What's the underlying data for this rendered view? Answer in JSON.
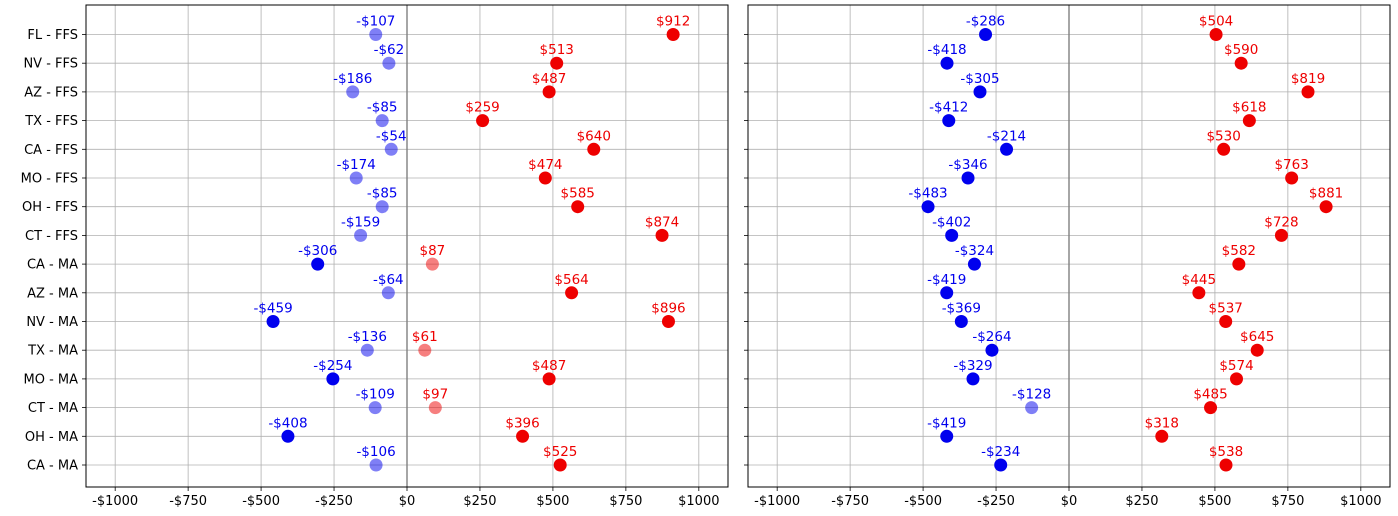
{
  "colors": {
    "negative": "#0000ee",
    "positive": "#ee0000",
    "grid": "#b0b0b0",
    "zero_line": "#808080"
  },
  "chart_data": [
    {
      "type": "scatter",
      "title": "",
      "xlabel": "",
      "ylabel": "",
      "xlim": [
        -1100,
        1100
      ],
      "xticks": [
        -1000,
        -750,
        -500,
        -250,
        0,
        250,
        500,
        750,
        1000
      ],
      "xtick_labels": [
        "-$1000",
        "-$750",
        "-$500",
        "-$250",
        "$0",
        "$250",
        "$500",
        "$750",
        "$1000"
      ],
      "grid": true,
      "categories": [
        "FL - FFS",
        "NV - FFS",
        "AZ - FFS",
        "TX - FFS",
        "CA - FFS",
        "MO - FFS",
        "OH - FFS",
        "CT - FFS",
        "CA - MA",
        "AZ - MA",
        "NV - MA",
        "TX - MA",
        "MO - MA",
        "CT - MA",
        "OH - MA",
        "CA - MA"
      ],
      "series": [
        {
          "values": [
            -107,
            -62,
            -186,
            -85,
            -54,
            -174,
            -85,
            -159,
            -306,
            -64,
            -459,
            -136,
            -254,
            -109,
            -408,
            -106
          ],
          "labels": [
            "-$107",
            "-$62",
            "-$186",
            "-$85",
            "-$54",
            "-$174",
            "-$85",
            "-$159",
            "-$306",
            "-$64",
            "-$459",
            "-$136",
            "-$254",
            "-$109",
            "-$408",
            "-$106"
          ],
          "opacity": [
            0.5,
            0.5,
            0.5,
            0.5,
            0.5,
            0.5,
            0.5,
            0.5,
            1,
            0.5,
            1,
            0.5,
            1,
            0.5,
            1,
            0.5
          ]
        },
        {
          "values": [
            912,
            513,
            487,
            259,
            640,
            474,
            585,
            874,
            87,
            564,
            896,
            61,
            487,
            97,
            396,
            525
          ],
          "labels": [
            "$912",
            "$513",
            "$487",
            "$259",
            "$640",
            "$474",
            "$585",
            "$874",
            "$87",
            "$564",
            "$896",
            "$61",
            "$487",
            "$97",
            "$396",
            "$525"
          ],
          "opacity": [
            1,
            1,
            1,
            1,
            1,
            1,
            1,
            1,
            0.5,
            1,
            1,
            0.5,
            1,
            0.5,
            1,
            1
          ]
        }
      ]
    },
    {
      "type": "scatter",
      "title": "",
      "xlabel": "",
      "ylabel": "",
      "xlim": [
        -1100,
        1100
      ],
      "xticks": [
        -1000,
        -750,
        -500,
        -250,
        0,
        250,
        500,
        750,
        1000
      ],
      "xtick_labels": [
        "-$1000",
        "-$750",
        "-$500",
        "-$250",
        "$0",
        "$250",
        "$500",
        "$750",
        "$1000"
      ],
      "grid": true,
      "categories": [],
      "series": [
        {
          "values": [
            -286,
            -418,
            -305,
            -412,
            -214,
            -346,
            -483,
            -402,
            -324,
            -419,
            -369,
            -264,
            -329,
            -128,
            -419,
            -234
          ],
          "labels": [
            "-$286",
            "-$418",
            "-$305",
            "-$412",
            "-$214",
            "-$346",
            "-$483",
            "-$402",
            "-$324",
            "-$419",
            "-$369",
            "-$264",
            "-$329",
            "-$128",
            "-$419",
            "-$234"
          ],
          "opacity": [
            1,
            1,
            1,
            1,
            1,
            1,
            1,
            1,
            1,
            1,
            1,
            1,
            1,
            0.5,
            1,
            1
          ]
        },
        {
          "values": [
            504,
            590,
            819,
            618,
            530,
            763,
            881,
            728,
            582,
            445,
            537,
            645,
            574,
            485,
            318,
            538
          ],
          "labels": [
            "$504",
            "$590",
            "$819",
            "$618",
            "$530",
            "$763",
            "$881",
            "$728",
            "$582",
            "$445",
            "$537",
            "$645",
            "$574",
            "$485",
            "$318",
            "$538"
          ],
          "opacity": [
            1,
            1,
            1,
            1,
            1,
            1,
            1,
            1,
            1,
            1,
            1,
            1,
            1,
            1,
            1,
            1
          ]
        }
      ]
    }
  ]
}
